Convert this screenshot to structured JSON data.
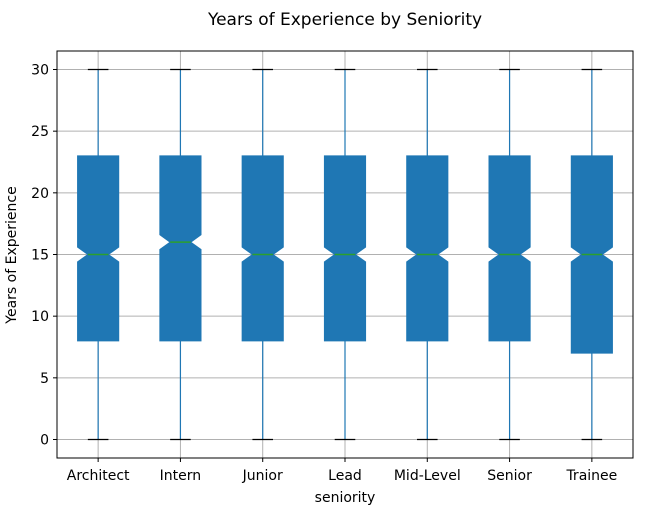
{
  "chart_data": {
    "type": "boxplot",
    "title": "Years of Experience by Seniority",
    "xlabel": "seniority",
    "ylabel": "Years of Experience",
    "ylim": [
      -1.5,
      31.5
    ],
    "yticks": [
      0,
      5,
      10,
      15,
      20,
      25,
      30
    ],
    "grid": true,
    "notched": true,
    "box_color": "#1f77b4",
    "median_color": "#2ca02c",
    "categories": [
      "Architect",
      "Intern",
      "Junior",
      "Lead",
      "Mid-Level",
      "Senior",
      "Trainee"
    ],
    "boxes": [
      {
        "category": "Architect",
        "whislo": 0,
        "q1": 8,
        "med": 15,
        "q3": 23,
        "whishi": 30
      },
      {
        "category": "Intern",
        "whislo": 0,
        "q1": 8,
        "med": 16,
        "q3": 23,
        "whishi": 30
      },
      {
        "category": "Junior",
        "whislo": 0,
        "q1": 8,
        "med": 15,
        "q3": 23,
        "whishi": 30
      },
      {
        "category": "Lead",
        "whislo": 0,
        "q1": 8,
        "med": 15,
        "q3": 23,
        "whishi": 30
      },
      {
        "category": "Mid-Level",
        "whislo": 0,
        "q1": 8,
        "med": 15,
        "q3": 23,
        "whishi": 30
      },
      {
        "category": "Senior",
        "whislo": 0,
        "q1": 8,
        "med": 15,
        "q3": 23,
        "whishi": 30
      },
      {
        "category": "Trainee",
        "whislo": 0,
        "q1": 7,
        "med": 15,
        "q3": 23,
        "whishi": 30
      }
    ]
  }
}
